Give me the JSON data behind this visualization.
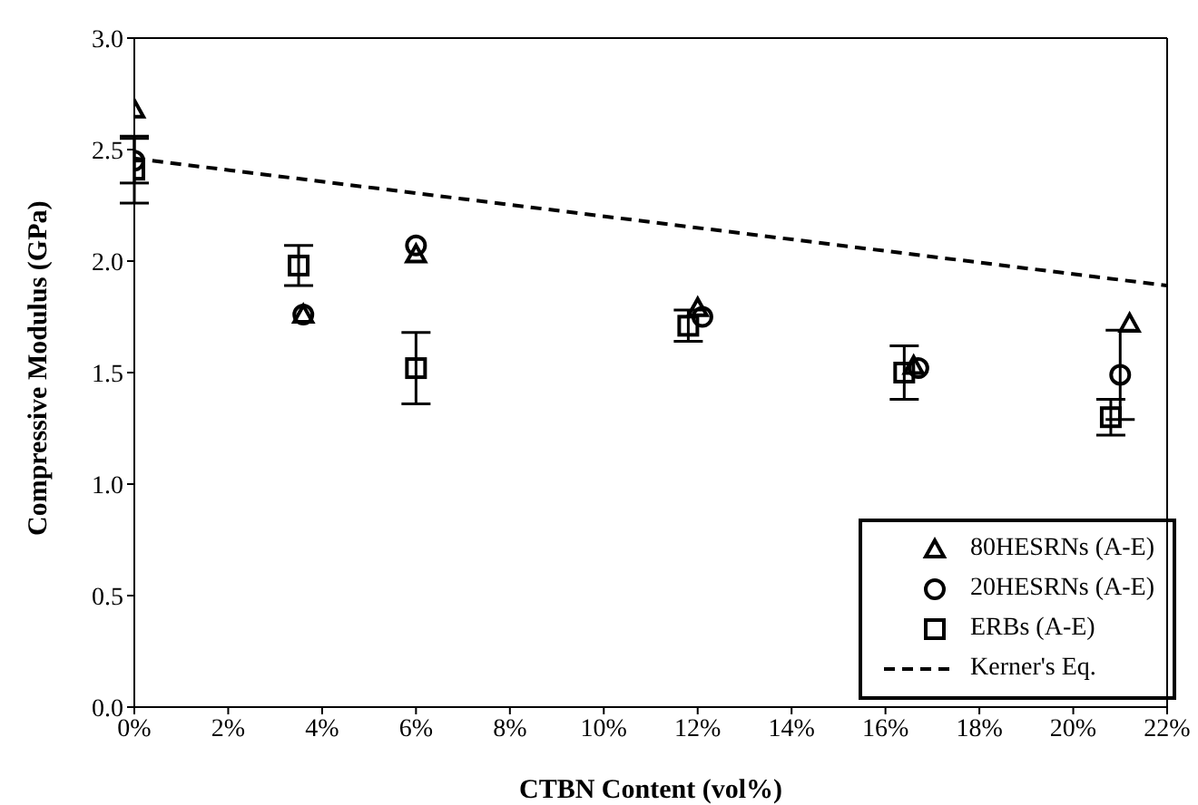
{
  "chart_data": {
    "type": "scatter",
    "xlabel": "CTBN Content (vol%)",
    "ylabel": "Compressive Modulus (GPa)",
    "xlim": [
      0,
      22
    ],
    "xticks": [
      {
        "value": 0,
        "label": "0%"
      },
      {
        "value": 2,
        "label": "2%"
      },
      {
        "value": 4,
        "label": "4%"
      },
      {
        "value": 6,
        "label": "6%"
      },
      {
        "value": 8,
        "label": "8%"
      },
      {
        "value": 10,
        "label": "10%"
      },
      {
        "value": 12,
        "label": "12%"
      },
      {
        "value": 14,
        "label": "14%"
      },
      {
        "value": 16,
        "label": "16%"
      },
      {
        "value": 18,
        "label": "18%"
      },
      {
        "value": 20,
        "label": "20%"
      },
      {
        "value": 22,
        "label": "22%"
      }
    ],
    "ylim": [
      0,
      3
    ],
    "yticks": [
      {
        "value": 0,
        "label": "0.0"
      },
      {
        "value": 0.5,
        "label": "0.5"
      },
      {
        "value": 1,
        "label": "1.0"
      },
      {
        "value": 1.5,
        "label": "1.5"
      },
      {
        "value": 2,
        "label": "2.0"
      },
      {
        "value": 2.5,
        "label": "2.5"
      },
      {
        "value": 3,
        "label": "3.0"
      }
    ],
    "grid": false,
    "legend": "bottom right",
    "series": [
      {
        "name": "80HESRNs (A-E)",
        "marker": "triangle",
        "color": "#000000",
        "x": [
          0,
          3.6,
          6.0,
          12.0,
          16.6,
          21.2
        ],
        "values": [
          2.68,
          1.76,
          2.03,
          1.79,
          1.53,
          1.72
        ]
      },
      {
        "name": "20HESRNs (A-E)",
        "marker": "circle",
        "color": "#000000",
        "x": [
          0,
          3.6,
          6.0,
          12.1,
          16.7,
          21.0
        ],
        "values": [
          2.45,
          1.76,
          2.07,
          1.75,
          1.52,
          1.49
        ],
        "errors": [
          0.1,
          null,
          null,
          null,
          null,
          0.2
        ]
      },
      {
        "name": "ERBs (A-E)",
        "marker": "square",
        "color": "#000000",
        "x": [
          0,
          3.5,
          6.0,
          11.8,
          16.4,
          20.8
        ],
        "values": [
          2.41,
          1.98,
          1.52,
          1.71,
          1.5,
          1.3
        ],
        "errors": [
          0.15,
          0.09,
          0.16,
          0.07,
          0.12,
          0.08
        ]
      },
      {
        "name": "Kerner's Eq.",
        "type": "line",
        "line_style": "dashed",
        "marker": "none",
        "color": "#000000",
        "x": [
          0,
          22
        ],
        "values": [
          2.46,
          1.89
        ]
      }
    ]
  }
}
